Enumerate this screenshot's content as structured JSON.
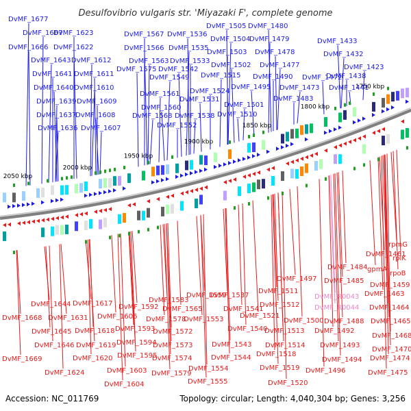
{
  "title": "Desulfovibrio vulgaris str. 'Miyazaki F', complete genome",
  "footer": {
    "accession": "Accession: NC_011769",
    "summary": "Topology: circular; Length: 4,040,304 bp; Genes: 3,256"
  },
  "colors": {
    "plus_strand": "#1a1ae6",
    "minus_strand": "#e61a1a",
    "rna_label": "#e888c8",
    "backbone": "#808080"
  },
  "ticks": [
    "2050 kbp",
    "2000 kbp",
    "1950 kbp",
    "1900 kbp",
    "1850 kbp",
    "1800 kbp",
    "1750 kbp"
  ],
  "plus_genes": [
    "DvMF_1677",
    "DvMF_1667",
    "DvMF_1623",
    "DvMF_1666",
    "DvMF_1622",
    "DvMF_1643",
    "DvMF_1612",
    "DvMF_1641",
    "DvMF_1611",
    "DvMF_1640",
    "DvMF_1610",
    "DvMF_1639",
    "DvMF_1609",
    "DvMF_1637",
    "DvMF_1608",
    "DvMF_1636",
    "DvMF_1607",
    "DvMF_1567",
    "DvMF_1536",
    "DvMF_1566",
    "DvMF_1535",
    "DvMF_1563",
    "DvMF_1533",
    "DvMF_1575",
    "DvMF_1542",
    "DvMF_1549",
    "DvMF_1561",
    "DvMF_1524",
    "DvMF_1531",
    "DvMF_1560",
    "DvMF_1568",
    "DvMF_1538",
    "DvMF_1552",
    "DvMF_1505",
    "DvMF_1480",
    "DvMF_1504",
    "DvMF_1479",
    "DvMF_1503",
    "DvMF_1478",
    "DvMF_1502",
    "DvMF_1477",
    "DvMF_1515",
    "DvMF_1490",
    "DvMF_1472",
    "DvMF_1495",
    "DvMF_1473",
    "DvMF_1501",
    "DvMF_1483",
    "DvMF_1510",
    "DvMF_1433",
    "DvMF_1432",
    "DvMF_1423",
    "DvMF_1438",
    "DvMF_1441"
  ],
  "minus_genes": [
    "rpmG",
    "DvMF_1461",
    "rplK",
    "DvMF_1484",
    "gpmA",
    "rpoB",
    "DvMF_1485",
    "DvMF_1459",
    "DvMF_1497",
    "DvMF_1463",
    "DvMF_R0043",
    "DvMF_1511",
    "DvMF_R0044",
    "DvMF_1464",
    "DvMF_1537",
    "DvMF_1512",
    "DvMF_1488",
    "DvMF_1465",
    "DvMF_1559",
    "DvMF_1541",
    "DvMF_1521",
    "DvMF_1500",
    "DvMF_1583",
    "DvMF_1565",
    "DvMF_1553",
    "DvMF_1513",
    "DvMF_1492",
    "DvMF_1468",
    "DvMF_1617",
    "DvMF_1592",
    "DvMF_1578",
    "DvMF_1540",
    "DvMF_1470",
    "DvMF_1644",
    "DvMF_1606",
    "DvMF_1572",
    "DvMF_1514",
    "DvMF_1493",
    "DvMF_1474",
    "DvMF_1668",
    "DvMF_1631",
    "DvMF_1593",
    "DvMF_1543",
    "DvMF_1518",
    "DvMF_1494",
    "DvMF_1475",
    "DvMF_1645",
    "DvMF_1618",
    "DvMF_1594",
    "DvMF_1573",
    "DvMF_1544",
    "DvMF_1646",
    "DvMF_1619",
    "DvMF_1595",
    "DvMF_1574",
    "DvMF_1554",
    "DvMF_1519",
    "DvMF_1496",
    "DvMF_1669",
    "DvMF_1620",
    "DvMF_1579",
    "DvMF_1603",
    "DvMF_1520",
    "DvMF_1624",
    "DvMF_1555",
    "DvMF_1604"
  ]
}
